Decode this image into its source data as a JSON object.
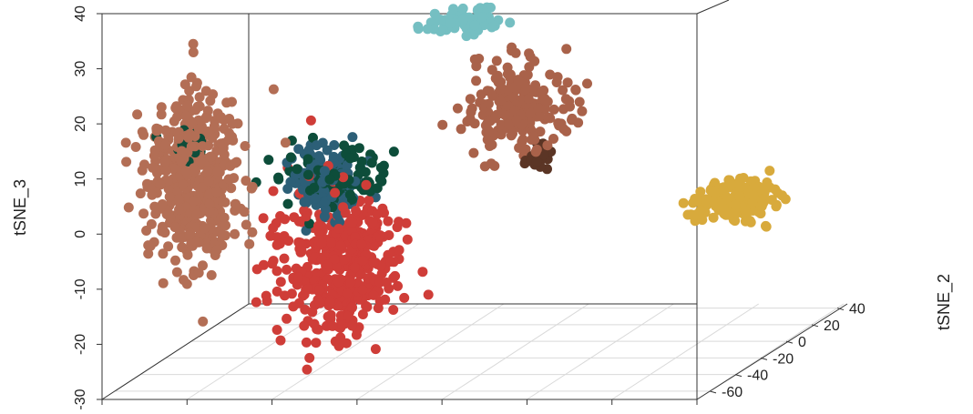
{
  "chart_data": {
    "type": "scatter",
    "projection": "3d",
    "title": "",
    "xlabel": "",
    "ylabel": "tSNE_2",
    "zlabel": "tSNE_3",
    "xlim": [
      -60,
      60
    ],
    "ylim": [
      -70,
      45
    ],
    "zlim": [
      -30,
      40
    ],
    "y_ticks": [
      "-60",
      "-40",
      "-20",
      "0",
      "20",
      "40"
    ],
    "y_tick_values": [
      -60,
      -40,
      -20,
      0,
      20,
      40
    ],
    "z_ticks": [
      "-30",
      "-20",
      "-10",
      "0",
      "10",
      "20",
      "30",
      "40"
    ],
    "z_tick_values": [
      -30,
      -20,
      -10,
      0,
      10,
      20,
      30,
      40
    ],
    "grid": true,
    "legend": "none",
    "clusters": [
      {
        "color": "#b36e55",
        "cx": -48,
        "cy": -45,
        "cz": 6,
        "sx": 5,
        "sy": 4,
        "sz": 8,
        "n": 460
      },
      {
        "color": "#cf3d38",
        "cx": -20,
        "cy": -40,
        "cz": -10,
        "sx": 6,
        "sy": 4,
        "sz": 7,
        "n": 430
      },
      {
        "color": "#0d4d3a",
        "cx": -20,
        "cy": -42,
        "cz": 6,
        "sx": 5,
        "sy": 3,
        "sz": 3,
        "n": 90
      },
      {
        "color": "#0d4d3a",
        "cx": -49,
        "cy": -45,
        "cz": 13,
        "sx": 2,
        "sy": 2,
        "sz": 1.2,
        "n": 25
      },
      {
        "color": "#2c5f77",
        "cx": -23,
        "cy": -40,
        "cz": 5,
        "sx": 3,
        "sy": 3,
        "sz": 3.5,
        "n": 160
      },
      {
        "color": "#75bfc2",
        "cx": -13,
        "cy": 32,
        "cz": 23,
        "sx": 4,
        "sy": 3,
        "sz": 1.2,
        "n": 70
      },
      {
        "color": "#a9624a",
        "cx": -5,
        "cy": 40,
        "cz": 6,
        "sx": 5,
        "sy": 4,
        "sz": 4,
        "n": 240
      },
      {
        "color": "#5b3525",
        "cx": 0,
        "cy": 38,
        "cz": -2,
        "sx": 1.2,
        "sy": 2,
        "sz": 1.2,
        "n": 25
      },
      {
        "color": "#d8aa3c",
        "cx": 58,
        "cy": -30,
        "cz": 0,
        "sx": 4,
        "sy": 3,
        "sz": 2,
        "n": 200
      }
    ]
  }
}
